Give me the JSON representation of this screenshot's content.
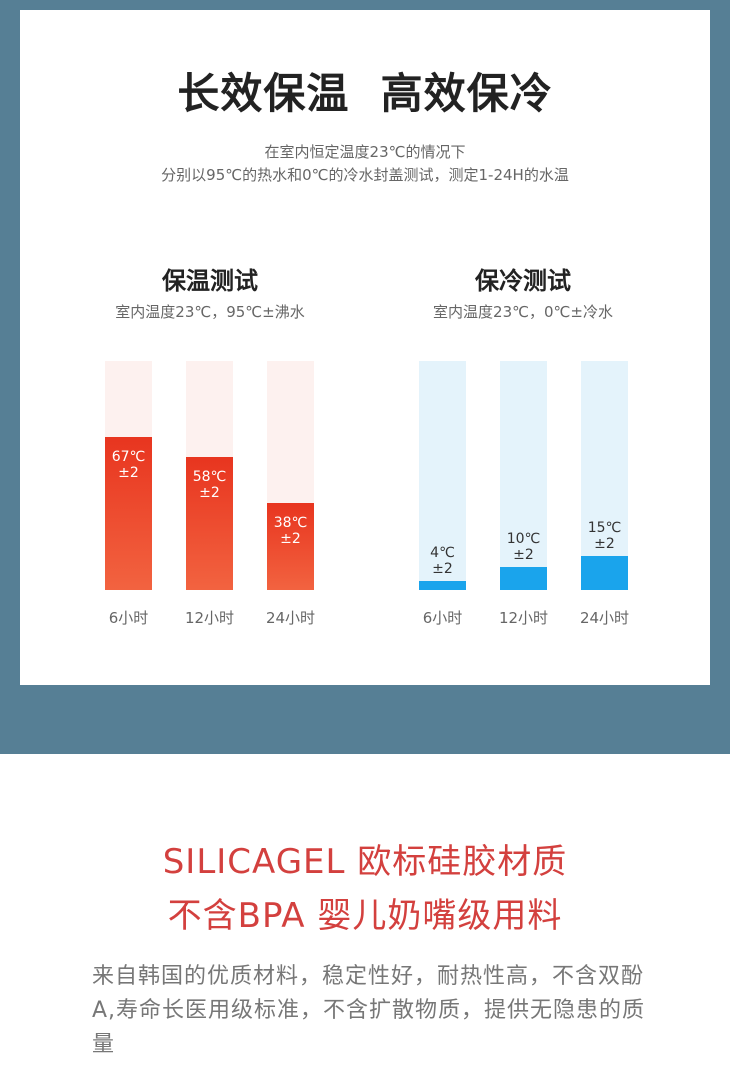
{
  "header": {
    "title": "长效保温  高效保冷",
    "sub1": "在室内恒定温度23℃的情况下",
    "sub2": "分别以95℃的热水和0℃的冷水封盖测试，测定1-24H的水温"
  },
  "colors": {
    "band": "#567f95",
    "hot_bg": "#fdf1ef",
    "hot_fill": "#f26340",
    "hot_fill_top": "#e8351f",
    "cold_bg": "#e4f3fb",
    "cold_fill": "#1aa4ec",
    "promo": "#d3403e"
  },
  "chart_data": [
    {
      "type": "bar",
      "title": "保温测试",
      "subtitle": "室内温度23℃，95℃±沸水",
      "categories": [
        "6小时",
        "12小时",
        "24小时"
      ],
      "values": [
        67,
        58,
        38
      ],
      "value_labels": [
        "67℃\n±2",
        "58℃\n±2",
        "38℃\n±2"
      ],
      "unit": "℃",
      "ylim": [
        0,
        100
      ]
    },
    {
      "type": "bar",
      "title": "保冷测试",
      "subtitle": "室内温度23℃，0℃±冷水",
      "categories": [
        "6小时",
        "12小时",
        "24小时"
      ],
      "values": [
        4,
        10,
        15
      ],
      "value_labels": [
        "4℃\n±2",
        "10℃\n±2",
        "15℃\n±2"
      ],
      "unit": "℃",
      "ylim": [
        0,
        100
      ]
    }
  ],
  "promo": {
    "line1": "SILICAGEL 欧标硅胶材质",
    "line2": "不含BPA 婴儿奶嘴级用料",
    "body": "来自韩国的优质材料，稳定性好，耐热性高，不含双酚A,寿命长医用级标准，不含扩散物质，提供无隐患的质量"
  }
}
